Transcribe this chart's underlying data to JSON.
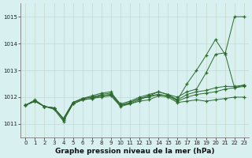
{
  "x": [
    0,
    1,
    2,
    3,
    4,
    5,
    6,
    7,
    8,
    9,
    10,
    11,
    12,
    13,
    14,
    15,
    16,
    17,
    18,
    19,
    20,
    21,
    22,
    23
  ],
  "lines": [
    [
      1011.7,
      1011.85,
      1011.65,
      1011.55,
      1011.1,
      1011.75,
      1011.9,
      1011.95,
      1012.0,
      1012.05,
      1011.65,
      1011.75,
      1011.85,
      1011.9,
      1012.05,
      1012.0,
      1011.8,
      1011.85,
      1011.9,
      1011.85,
      1011.9,
      1011.95,
      1012.0,
      1012.0
    ],
    [
      1011.7,
      1011.85,
      1011.65,
      1011.6,
      1011.15,
      1011.75,
      1011.9,
      1011.95,
      1012.05,
      1012.1,
      1011.7,
      1011.8,
      1011.95,
      1012.0,
      1012.1,
      1012.05,
      1011.85,
      1012.0,
      1012.1,
      1012.15,
      1012.2,
      1012.3,
      1012.35,
      1012.4
    ],
    [
      1011.7,
      1011.85,
      1011.65,
      1011.6,
      1011.2,
      1011.8,
      1011.95,
      1012.0,
      1012.05,
      1012.1,
      1011.7,
      1011.8,
      1011.95,
      1012.05,
      1012.1,
      1012.05,
      1011.9,
      1012.1,
      1012.2,
      1012.25,
      1012.35,
      1012.4,
      1012.4,
      1012.45
    ],
    [
      1011.7,
      1011.85,
      1011.65,
      1011.6,
      1011.2,
      1011.8,
      1011.95,
      1012.0,
      1012.1,
      1012.15,
      1011.75,
      1011.85,
      1012.0,
      1012.1,
      1012.2,
      1012.1,
      1012.0,
      1012.2,
      1012.3,
      1012.9,
      1013.6,
      1013.65,
      1012.35,
      1012.45
    ],
    [
      1011.7,
      1011.9,
      1011.65,
      1011.6,
      1011.2,
      1011.8,
      1011.95,
      1012.05,
      1012.15,
      1012.2,
      1011.7,
      1011.75,
      1011.9,
      1012.05,
      1012.2,
      1012.1,
      1011.9,
      1012.5,
      1013.0,
      1013.55,
      1014.15,
      1013.6,
      1015.0,
      1015.0
    ]
  ],
  "line_color": "#2d6a2d",
  "bg_color": "#d8f0f0",
  "grid_color": "#c8d8c8",
  "xlabel": "Graphe pression niveau de la mer (hPa)",
  "ylim": [
    1010.5,
    1015.5
  ],
  "xlim": [
    -0.5,
    23.5
  ],
  "yticks": [
    1011,
    1012,
    1013,
    1014,
    1015
  ],
  "xticks": [
    0,
    1,
    2,
    3,
    4,
    5,
    6,
    7,
    8,
    9,
    10,
    11,
    12,
    13,
    14,
    15,
    16,
    17,
    18,
    19,
    20,
    21,
    22,
    23
  ]
}
